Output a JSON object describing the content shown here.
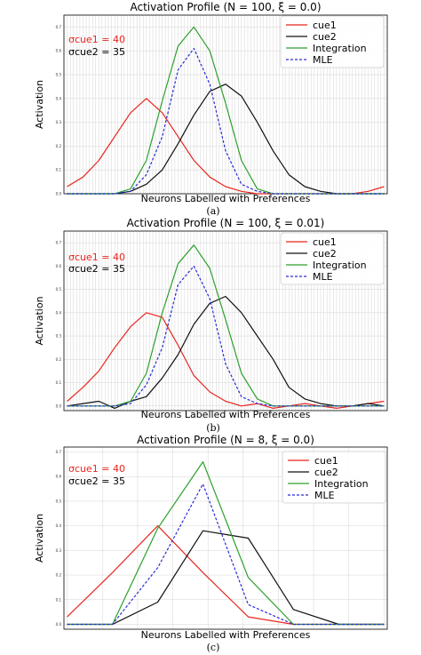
{
  "colors": {
    "cue1": "#e8261f",
    "cue2": "#111111",
    "integration": "#2ca02c",
    "mle": "#2b2bd8",
    "sigma_cue1": "#e8261f",
    "sigma_cue2": "#000000"
  },
  "chart_data": [
    {
      "type": "line",
      "title": "Activation Profile (N = 100, ξ = 0.0)",
      "xlabel": "Neurons Labelled with Preferences",
      "ylabel": "Activation",
      "caption": "(a)",
      "ylim": [
        0,
        0.75
      ],
      "yticks": [
        "0.0",
        "0.1",
        "0.2",
        "0.3",
        "0.4",
        "0.5",
        "0.6",
        "0.7"
      ],
      "grid": true,
      "legend": "top-right",
      "annotations": [
        "σcue1 = 40",
        "σcue2 = 35"
      ],
      "x": [
        0,
        5,
        10,
        15,
        20,
        25,
        30,
        35,
        40,
        45,
        50,
        55,
        60,
        65,
        70,
        75,
        80,
        85,
        90,
        95,
        100
      ],
      "series": [
        {
          "name": "cue1",
          "values": [
            0.03,
            0.07,
            0.14,
            0.24,
            0.34,
            0.4,
            0.34,
            0.24,
            0.14,
            0.07,
            0.03,
            0.01,
            0.0,
            0.0,
            0.0,
            0.0,
            0.0,
            0.0,
            0.0,
            0.01,
            0.03
          ]
        },
        {
          "name": "cue2",
          "values": [
            0.0,
            0.0,
            0.0,
            0.0,
            0.01,
            0.04,
            0.1,
            0.21,
            0.33,
            0.43,
            0.46,
            0.41,
            0.3,
            0.18,
            0.08,
            0.03,
            0.01,
            0.0,
            0.0,
            0.0,
            0.0
          ]
        },
        {
          "name": "Integration",
          "values": [
            0.0,
            0.0,
            0.0,
            0.0,
            0.02,
            0.14,
            0.39,
            0.62,
            0.7,
            0.6,
            0.38,
            0.14,
            0.02,
            0.0,
            0.0,
            0.0,
            0.0,
            0.0,
            0.0,
            0.0,
            0.0
          ]
        },
        {
          "name": "MLE",
          "values": [
            0.0,
            0.0,
            0.0,
            0.0,
            0.01,
            0.08,
            0.24,
            0.52,
            0.61,
            0.46,
            0.18,
            0.04,
            0.01,
            0.0,
            0.0,
            0.0,
            0.0,
            0.0,
            0.0,
            0.0,
            0.0
          ]
        }
      ]
    },
    {
      "type": "line",
      "title": "Activation Profile (N = 100, ξ = 0.01)",
      "xlabel": "Neurons Labelled with Preferences",
      "ylabel": "Activation",
      "caption": "(b)",
      "ylim": [
        -0.02,
        0.75
      ],
      "yticks": [
        "0.0",
        "0.1",
        "0.2",
        "0.3",
        "0.4",
        "0.5",
        "0.6",
        "0.7"
      ],
      "grid": true,
      "legend": "top-right",
      "annotations": [
        "σcue1 = 40",
        "σcue2 = 35"
      ],
      "x": [
        0,
        5,
        10,
        15,
        20,
        25,
        30,
        35,
        40,
        45,
        50,
        55,
        60,
        65,
        70,
        75,
        80,
        85,
        90,
        95,
        100
      ],
      "series": [
        {
          "name": "cue1",
          "values": [
            0.02,
            0.08,
            0.15,
            0.25,
            0.34,
            0.4,
            0.38,
            0.26,
            0.13,
            0.06,
            0.02,
            0.0,
            0.01,
            -0.01,
            0.0,
            0.01,
            0.0,
            -0.01,
            0.0,
            0.01,
            0.02
          ]
        },
        {
          "name": "cue2",
          "values": [
            0.0,
            0.01,
            0.02,
            -0.01,
            0.02,
            0.04,
            0.12,
            0.22,
            0.35,
            0.44,
            0.47,
            0.4,
            0.3,
            0.2,
            0.08,
            0.03,
            0.01,
            0.0,
            0.0,
            0.01,
            0.0
          ]
        },
        {
          "name": "Integration",
          "values": [
            0.0,
            0.0,
            0.0,
            0.0,
            0.02,
            0.14,
            0.4,
            0.61,
            0.69,
            0.59,
            0.37,
            0.14,
            0.03,
            0.0,
            0.0,
            0.0,
            0.0,
            0.0,
            0.0,
            0.0,
            0.0
          ]
        },
        {
          "name": "MLE",
          "values": [
            0.0,
            0.0,
            0.0,
            0.0,
            0.01,
            0.09,
            0.25,
            0.52,
            0.6,
            0.46,
            0.18,
            0.04,
            0.01,
            0.0,
            0.0,
            0.0,
            0.0,
            0.0,
            0.0,
            0.0,
            0.0
          ]
        }
      ]
    },
    {
      "type": "line",
      "title": "Activation Profile (N = 8, ξ = 0.0)",
      "xlabel": "Neurons Labelled with Preferences",
      "ylabel": "Activation",
      "caption": "(c)",
      "ylim": [
        -0.02,
        0.72
      ],
      "yticks": [
        "0.0",
        "0.1",
        "0.2",
        "0.3",
        "0.4",
        "0.5",
        "0.6",
        "0.7"
      ],
      "grid": true,
      "legend": "top-right",
      "annotations": [
        "σcue1 = 40",
        "σcue2 = 35"
      ],
      "x": [
        0,
        1,
        2,
        3,
        4,
        5,
        6,
        7
      ],
      "series": [
        {
          "name": "cue1",
          "values": [
            0.03,
            0.21,
            0.4,
            0.21,
            0.03,
            0.0,
            0.0,
            0.0
          ]
        },
        {
          "name": "cue2",
          "values": [
            0.0,
            0.0,
            0.09,
            0.38,
            0.35,
            0.06,
            0.0,
            0.0
          ]
        },
        {
          "name": "Integration",
          "values": [
            0.0,
            0.0,
            0.39,
            0.66,
            0.19,
            0.0,
            0.0,
            0.0
          ]
        },
        {
          "name": "MLE",
          "values": [
            0.0,
            0.0,
            0.23,
            0.57,
            0.08,
            0.0,
            0.0,
            0.0
          ]
        }
      ]
    }
  ]
}
